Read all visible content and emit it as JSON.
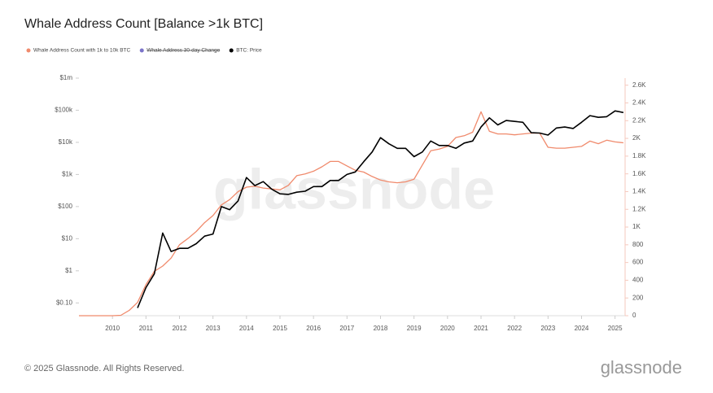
{
  "chart_data": {
    "type": "line",
    "title": "Whale Address Count [Balance >1k BTC]",
    "watermark": "glassnode",
    "footer": "© 2025 Glassnode. All Rights Reserved.",
    "logo": "glassnode",
    "log_y": true,
    "xlim": [
      2009,
      2025.3
    ],
    "xticks": [
      2010,
      2011,
      2012,
      2013,
      2014,
      2015,
      2016,
      2017,
      2018,
      2019,
      2020,
      2021,
      2022,
      2023,
      2024,
      2025
    ],
    "ylim": [
      0.04,
      1000000
    ],
    "yticks": [
      {
        "value": 0.1,
        "label": "$0.10"
      },
      {
        "value": 1,
        "label": "$1"
      },
      {
        "value": 10,
        "label": "$10"
      },
      {
        "value": 100,
        "label": "$100"
      },
      {
        "value": 1000,
        "label": "$1k"
      },
      {
        "value": 10000,
        "label": "$10k"
      },
      {
        "value": 100000,
        "label": "$100k"
      },
      {
        "value": 1000000,
        "label": "$1m"
      }
    ],
    "y2lim": [
      0,
      2680
    ],
    "y2ticks": [
      0,
      200,
      400,
      600,
      800,
      {
        "value": 1000,
        "label": "1K"
      },
      {
        "value": 1200,
        "label": "1.2K"
      },
      {
        "value": 1400,
        "label": "1.4K"
      },
      {
        "value": 1600,
        "label": "1.6K"
      },
      {
        "value": 1800,
        "label": "1.8K"
      },
      {
        "value": 2000,
        "label": "2K"
      },
      {
        "value": 2200,
        "label": "2.2K"
      },
      {
        "value": 2400,
        "label": "2.4K"
      },
      {
        "value": 2600,
        "label": "2.6K"
      }
    ],
    "x": [
      2009,
      2009.25,
      2009.5,
      2009.75,
      2010,
      2010.25,
      2010.5,
      2010.75,
      2011,
      2011.25,
      2011.5,
      2011.75,
      2012,
      2012.25,
      2012.5,
      2012.75,
      2013,
      2013.25,
      2013.5,
      2013.75,
      2014,
      2014.25,
      2014.5,
      2014.75,
      2015,
      2015.25,
      2015.5,
      2015.75,
      2016,
      2016.25,
      2016.5,
      2016.75,
      2017,
      2017.25,
      2017.5,
      2017.75,
      2018,
      2018.25,
      2018.5,
      2018.75,
      2019,
      2019.25,
      2019.5,
      2019.75,
      2020,
      2020.25,
      2020.5,
      2020.75,
      2021,
      2021.25,
      2021.5,
      2021.75,
      2022,
      2022.25,
      2022.5,
      2022.75,
      2023,
      2023.25,
      2023.5,
      2023.75,
      2024,
      2024.25,
      2024.5,
      2024.75,
      2025,
      2025.25
    ],
    "series": [
      {
        "name": "Whale Address Count with 1k to 10k BTC",
        "color": "#f08a6c",
        "axis": "y2",
        "visible": true,
        "values": [
          0,
          0,
          0,
          0,
          0,
          5,
          60,
          150,
          350,
          500,
          560,
          650,
          800,
          870,
          950,
          1050,
          1130,
          1250,
          1310,
          1400,
          1450,
          1460,
          1440,
          1430,
          1420,
          1470,
          1580,
          1600,
          1630,
          1680,
          1740,
          1740,
          1690,
          1640,
          1620,
          1570,
          1530,
          1510,
          1500,
          1510,
          1540,
          1700,
          1860,
          1880,
          1910,
          2010,
          2030,
          2070,
          2300,
          2080,
          2050,
          2050,
          2040,
          2050,
          2060,
          2060,
          1900,
          1890,
          1890,
          1900,
          1910,
          1970,
          1940,
          1980,
          1960,
          1950
        ]
      },
      {
        "name": "Whale Address 30-day Change",
        "color": "#7b74c9",
        "axis": "y2",
        "visible": false,
        "values": [
          null,
          null,
          null,
          null,
          null,
          null,
          null,
          null,
          null,
          null,
          null,
          null,
          null,
          null,
          null,
          null,
          null,
          null,
          null,
          null,
          null,
          null,
          null,
          null,
          null,
          null,
          null,
          null,
          null,
          null,
          null,
          null,
          null,
          null,
          null,
          null,
          null,
          null,
          null,
          null,
          null,
          null,
          null,
          null,
          null,
          null,
          null,
          null,
          null,
          null,
          null,
          null,
          null,
          null,
          null,
          null,
          null,
          null,
          null,
          null,
          null,
          null,
          null,
          null,
          null,
          null
        ]
      },
      {
        "name": "BTC: Price",
        "color": "#000000",
        "axis": "y",
        "visible": true,
        "values": [
          null,
          null,
          null,
          null,
          null,
          null,
          null,
          0.07,
          0.3,
          0.8,
          15,
          4,
          5,
          5,
          7,
          12,
          14,
          100,
          80,
          150,
          800,
          450,
          600,
          350,
          250,
          240,
          280,
          300,
          420,
          420,
          650,
          650,
          1000,
          1200,
          2500,
          5000,
          14000,
          9000,
          6500,
          6500,
          3600,
          5000,
          11000,
          8000,
          8000,
          6500,
          9500,
          11000,
          30000,
          58000,
          35000,
          48000,
          45000,
          42000,
          20000,
          19500,
          16800,
          28000,
          30000,
          27000,
          42000,
          68000,
          60000,
          63000,
          95000,
          85000
        ]
      }
    ]
  }
}
